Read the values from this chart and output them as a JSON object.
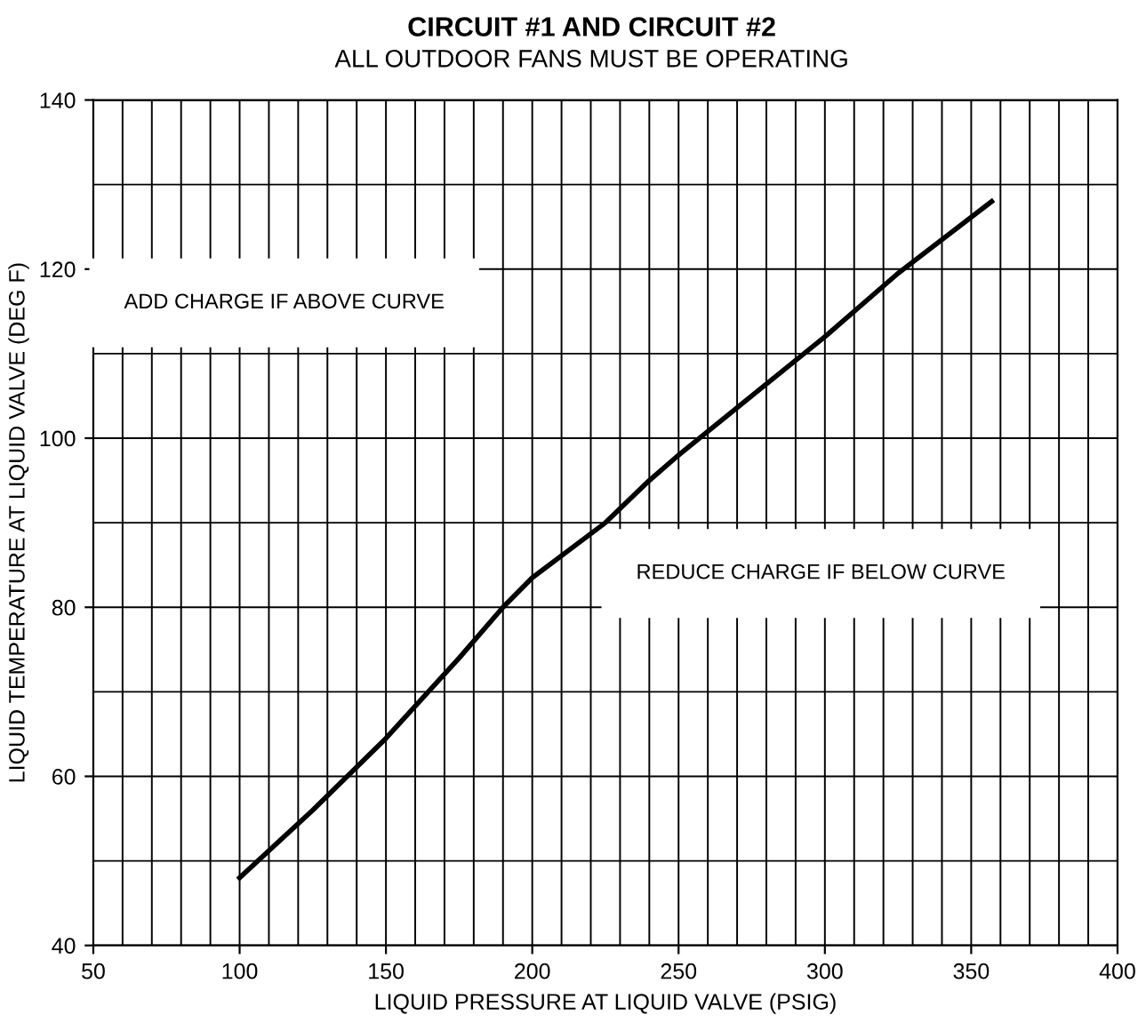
{
  "chart_data": {
    "type": "line",
    "title": "CIRCUIT #1 AND CIRCUIT #2",
    "subtitle": "ALL OUTDOOR FANS MUST BE OPERATING",
    "xlabel": "LIQUID PRESSURE AT LIQUID VALVE (PSIG)",
    "ylabel": "LIQUID TEMPERATURE AT LIQUID VALVE (DEG F)",
    "x": [
      100,
      125,
      150,
      175,
      190,
      200,
      225,
      240,
      250,
      275,
      300,
      325,
      357
    ],
    "series": [
      {
        "color": "#000000",
        "values": [
          48,
          56,
          64.5,
          74,
          80,
          83.5,
          90,
          95,
          98,
          105,
          112,
          119.5,
          128
        ]
      }
    ],
    "xlim": [
      50,
      400
    ],
    "xticks": [
      50,
      100,
      150,
      200,
      250,
      300,
      350,
      400
    ],
    "ylim": [
      40,
      140
    ],
    "yticks": [
      40,
      60,
      80,
      100,
      120,
      140
    ],
    "grid": true,
    "marker": "none",
    "line_style": "solid",
    "annotations": [
      "ADD CHARGE IF ABOVE CURVE",
      "REDUCE CHARGE IF BELOW CURVE"
    ]
  }
}
